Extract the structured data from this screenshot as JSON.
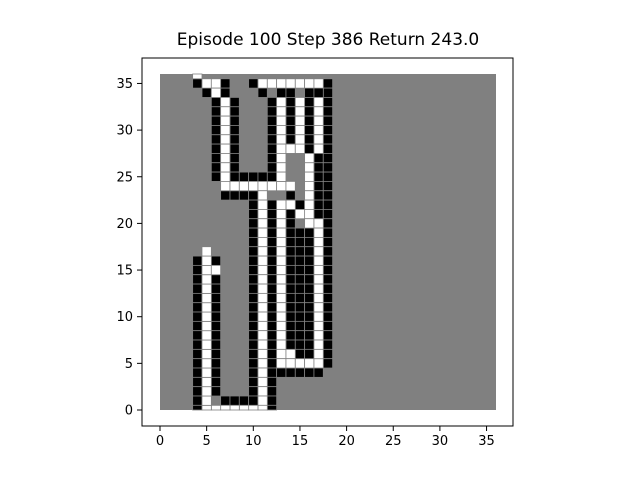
{
  "title": "Episode 100 Step 386 Return 243.0",
  "colors": {
    "background": "#808080",
    "wall": "#000000",
    "path": "#ffffff",
    "gridline": "#808080"
  },
  "grid": {
    "size": 37,
    "x_ticks": [
      "0",
      "5",
      "10",
      "15",
      "20",
      "25",
      "30",
      "35"
    ],
    "y_ticks": [
      "0",
      "5",
      "10",
      "15",
      "20",
      "25",
      "30",
      "35"
    ],
    "wall": [
      [
        4,
        35
      ],
      [
        5,
        34
      ],
      [
        7,
        35
      ],
      [
        7,
        34
      ],
      [
        10,
        35
      ],
      [
        11,
        34
      ],
      [
        18,
        35
      ],
      [
        18,
        34
      ],
      [
        6,
        33
      ],
      [
        6,
        32
      ],
      [
        6,
        31
      ],
      [
        6,
        30
      ],
      [
        6,
        29
      ],
      [
        6,
        28
      ],
      [
        6,
        27
      ],
      [
        6,
        26
      ],
      [
        6,
        25
      ],
      [
        8,
        33
      ],
      [
        8,
        32
      ],
      [
        8,
        31
      ],
      [
        8,
        30
      ],
      [
        8,
        29
      ],
      [
        8,
        28
      ],
      [
        8,
        27
      ],
      [
        8,
        26
      ],
      [
        8,
        25
      ],
      [
        9,
        25
      ],
      [
        10,
        25
      ],
      [
        11,
        25
      ],
      [
        12,
        25
      ],
      [
        13,
        25
      ],
      [
        12,
        33
      ],
      [
        12,
        32
      ],
      [
        12,
        31
      ],
      [
        12,
        30
      ],
      [
        12,
        29
      ],
      [
        12,
        28
      ],
      [
        12,
        27
      ],
      [
        12,
        26
      ],
      [
        13,
        34
      ],
      [
        14,
        34
      ],
      [
        16,
        34
      ],
      [
        17,
        34
      ],
      [
        14,
        33
      ],
      [
        14,
        32
      ],
      [
        14,
        31
      ],
      [
        14,
        30
      ],
      [
        14,
        29
      ],
      [
        16,
        33
      ],
      [
        16,
        32
      ],
      [
        16,
        31
      ],
      [
        16,
        30
      ],
      [
        16,
        29
      ],
      [
        16,
        28
      ],
      [
        17,
        27
      ],
      [
        17,
        26
      ],
      [
        17,
        25
      ],
      [
        17,
        24
      ],
      [
        17,
        23
      ],
      [
        17,
        22
      ],
      [
        17,
        21
      ],
      [
        18,
        33
      ],
      [
        18,
        32
      ],
      [
        18,
        31
      ],
      [
        18,
        30
      ],
      [
        18,
        29
      ],
      [
        18,
        28
      ],
      [
        18,
        27
      ],
      [
        18,
        26
      ],
      [
        18,
        25
      ],
      [
        18,
        24
      ],
      [
        18,
        23
      ],
      [
        18,
        22
      ],
      [
        18,
        21
      ],
      [
        18,
        20
      ],
      [
        18,
        19
      ],
      [
        18,
        18
      ],
      [
        18,
        17
      ],
      [
        18,
        16
      ],
      [
        18,
        15
      ],
      [
        18,
        14
      ],
      [
        18,
        13
      ],
      [
        18,
        12
      ],
      [
        18,
        11
      ],
      [
        18,
        10
      ],
      [
        18,
        9
      ],
      [
        18,
        8
      ],
      [
        18,
        7
      ],
      [
        18,
        6
      ],
      [
        18,
        5
      ],
      [
        14,
        23
      ],
      [
        14,
        22
      ],
      [
        15,
        22
      ],
      [
        16,
        22
      ],
      [
        7,
        23
      ],
      [
        8,
        23
      ],
      [
        9,
        23
      ],
      [
        10,
        23
      ],
      [
        10,
        22
      ],
      [
        10,
        21
      ],
      [
        10,
        20
      ],
      [
        10,
        19
      ],
      [
        10,
        18
      ],
      [
        10,
        17
      ],
      [
        10,
        16
      ],
      [
        10,
        15
      ],
      [
        10,
        14
      ],
      [
        10,
        13
      ],
      [
        10,
        12
      ],
      [
        10,
        11
      ],
      [
        10,
        10
      ],
      [
        10,
        9
      ],
      [
        10,
        8
      ],
      [
        10,
        7
      ],
      [
        10,
        6
      ],
      [
        10,
        5
      ],
      [
        10,
        4
      ],
      [
        10,
        3
      ],
      [
        10,
        2
      ],
      [
        12,
        22
      ],
      [
        12,
        21
      ],
      [
        12,
        20
      ],
      [
        12,
        19
      ],
      [
        12,
        18
      ],
      [
        12,
        17
      ],
      [
        12,
        16
      ],
      [
        12,
        15
      ],
      [
        12,
        14
      ],
      [
        12,
        13
      ],
      [
        12,
        12
      ],
      [
        12,
        11
      ],
      [
        12,
        10
      ],
      [
        12,
        9
      ],
      [
        12,
        8
      ],
      [
        12,
        7
      ],
      [
        12,
        6
      ],
      [
        12,
        5
      ],
      [
        12,
        4
      ],
      [
        12,
        3
      ],
      [
        12,
        2
      ],
      [
        12,
        1
      ],
      [
        12,
        0
      ],
      [
        14,
        21
      ],
      [
        14,
        20
      ],
      [
        14,
        19
      ],
      [
        14,
        18
      ],
      [
        14,
        17
      ],
      [
        14,
        16
      ],
      [
        14,
        15
      ],
      [
        14,
        14
      ],
      [
        14,
        13
      ],
      [
        14,
        12
      ],
      [
        14,
        11
      ],
      [
        14,
        10
      ],
      [
        14,
        9
      ],
      [
        14,
        8
      ],
      [
        14,
        7
      ],
      [
        15,
        19
      ],
      [
        15,
        18
      ],
      [
        15,
        17
      ],
      [
        15,
        16
      ],
      [
        15,
        15
      ],
      [
        15,
        14
      ],
      [
        15,
        13
      ],
      [
        15,
        12
      ],
      [
        15,
        11
      ],
      [
        15,
        10
      ],
      [
        15,
        9
      ],
      [
        15,
        8
      ],
      [
        15,
        7
      ],
      [
        15,
        6
      ],
      [
        16,
        19
      ],
      [
        16,
        18
      ],
      [
        16,
        17
      ],
      [
        16,
        16
      ],
      [
        16,
        15
      ],
      [
        16,
        14
      ],
      [
        16,
        13
      ],
      [
        16,
        12
      ],
      [
        16,
        11
      ],
      [
        16,
        10
      ],
      [
        16,
        9
      ],
      [
        16,
        8
      ],
      [
        16,
        7
      ],
      [
        16,
        6
      ],
      [
        13,
        4
      ],
      [
        14,
        4
      ],
      [
        15,
        4
      ],
      [
        16,
        4
      ],
      [
        17,
        4
      ],
      [
        4,
        16
      ],
      [
        4,
        15
      ],
      [
        4,
        14
      ],
      [
        4,
        13
      ],
      [
        4,
        12
      ],
      [
        4,
        11
      ],
      [
        4,
        10
      ],
      [
        4,
        9
      ],
      [
        4,
        8
      ],
      [
        4,
        7
      ],
      [
        4,
        6
      ],
      [
        4,
        5
      ],
      [
        4,
        4
      ],
      [
        4,
        3
      ],
      [
        4,
        2
      ],
      [
        4,
        1
      ],
      [
        4,
        0
      ],
      [
        6,
        16
      ],
      [
        6,
        14
      ],
      [
        6,
        13
      ],
      [
        6,
        12
      ],
      [
        6,
        11
      ],
      [
        6,
        10
      ],
      [
        6,
        9
      ],
      [
        6,
        8
      ],
      [
        6,
        7
      ],
      [
        6,
        6
      ],
      [
        6,
        5
      ],
      [
        6,
        4
      ],
      [
        6,
        3
      ],
      [
        6,
        2
      ],
      [
        7,
        1
      ],
      [
        8,
        1
      ],
      [
        9,
        1
      ],
      [
        10,
        1
      ]
    ],
    "path": [
      [
        4,
        36
      ],
      [
        5,
        35
      ],
      [
        6,
        35
      ],
      [
        6,
        34
      ],
      [
        7,
        33
      ],
      [
        7,
        32
      ],
      [
        7,
        31
      ],
      [
        7,
        30
      ],
      [
        7,
        29
      ],
      [
        7,
        28
      ],
      [
        7,
        27
      ],
      [
        7,
        26
      ],
      [
        7,
        25
      ],
      [
        7,
        24
      ],
      [
        8,
        24
      ],
      [
        9,
        24
      ],
      [
        10,
        24
      ],
      [
        11,
        24
      ],
      [
        12,
        24
      ],
      [
        13,
        24
      ],
      [
        14,
        24
      ],
      [
        11,
        23
      ],
      [
        11,
        22
      ],
      [
        11,
        21
      ],
      [
        11,
        20
      ],
      [
        11,
        19
      ],
      [
        11,
        18
      ],
      [
        11,
        17
      ],
      [
        11,
        16
      ],
      [
        11,
        15
      ],
      [
        11,
        14
      ],
      [
        11,
        13
      ],
      [
        11,
        12
      ],
      [
        11,
        11
      ],
      [
        11,
        10
      ],
      [
        11,
        9
      ],
      [
        11,
        8
      ],
      [
        11,
        7
      ],
      [
        11,
        6
      ],
      [
        11,
        5
      ],
      [
        11,
        4
      ],
      [
        11,
        3
      ],
      [
        11,
        2
      ],
      [
        11,
        1
      ],
      [
        11,
        0
      ],
      [
        10,
        0
      ],
      [
        9,
        0
      ],
      [
        8,
        0
      ],
      [
        7,
        0
      ],
      [
        6,
        0
      ],
      [
        5,
        0
      ],
      [
        5,
        1
      ],
      [
        5,
        2
      ],
      [
        5,
        3
      ],
      [
        5,
        4
      ],
      [
        5,
        5
      ],
      [
        5,
        6
      ],
      [
        5,
        7
      ],
      [
        5,
        8
      ],
      [
        5,
        9
      ],
      [
        5,
        10
      ],
      [
        5,
        11
      ],
      [
        5,
        12
      ],
      [
        5,
        13
      ],
      [
        5,
        14
      ],
      [
        5,
        15
      ],
      [
        5,
        16
      ],
      [
        5,
        17
      ],
      [
        6,
        15
      ],
      [
        11,
        35
      ],
      [
        12,
        35
      ],
      [
        13,
        35
      ],
      [
        14,
        35
      ],
      [
        15,
        35
      ],
      [
        16,
        35
      ],
      [
        17,
        35
      ],
      [
        13,
        33
      ],
      [
        13,
        32
      ],
      [
        13,
        31
      ],
      [
        13,
        30
      ],
      [
        13,
        29
      ],
      [
        13,
        28
      ],
      [
        13,
        27
      ],
      [
        13,
        26
      ],
      [
        13,
        25
      ],
      [
        14,
        28
      ],
      [
        15,
        28
      ],
      [
        16,
        27
      ],
      [
        16,
        26
      ],
      [
        16,
        25
      ],
      [
        16,
        24
      ],
      [
        16,
        23
      ],
      [
        16,
        22
      ],
      [
        16,
        21
      ],
      [
        16,
        20
      ],
      [
        15,
        33
      ],
      [
        15,
        32
      ],
      [
        15,
        31
      ],
      [
        15,
        30
      ],
      [
        15,
        29
      ],
      [
        17,
        33
      ],
      [
        17,
        32
      ],
      [
        17,
        31
      ],
      [
        17,
        30
      ],
      [
        17,
        29
      ],
      [
        17,
        28
      ],
      [
        15,
        21
      ],
      [
        14,
        22
      ],
      [
        13,
        22
      ],
      [
        13,
        21
      ],
      [
        13,
        20
      ],
      [
        13,
        19
      ],
      [
        13,
        18
      ],
      [
        13,
        17
      ],
      [
        13,
        16
      ],
      [
        13,
        15
      ],
      [
        13,
        14
      ],
      [
        13,
        13
      ],
      [
        13,
        12
      ],
      [
        13,
        11
      ],
      [
        13,
        10
      ],
      [
        13,
        9
      ],
      [
        13,
        8
      ],
      [
        13,
        7
      ],
      [
        13,
        6
      ],
      [
        13,
        5
      ],
      [
        14,
        6
      ],
      [
        14,
        5
      ],
      [
        15,
        5
      ],
      [
        16,
        5
      ],
      [
        17,
        5
      ],
      [
        17,
        20
      ],
      [
        17,
        19
      ],
      [
        17,
        18
      ],
      [
        17,
        17
      ],
      [
        17,
        16
      ],
      [
        17,
        15
      ],
      [
        17,
        14
      ],
      [
        17,
        13
      ],
      [
        17,
        12
      ],
      [
        17,
        11
      ],
      [
        17,
        10
      ],
      [
        17,
        9
      ],
      [
        17,
        8
      ],
      [
        17,
        7
      ],
      [
        17,
        6
      ]
    ]
  }
}
